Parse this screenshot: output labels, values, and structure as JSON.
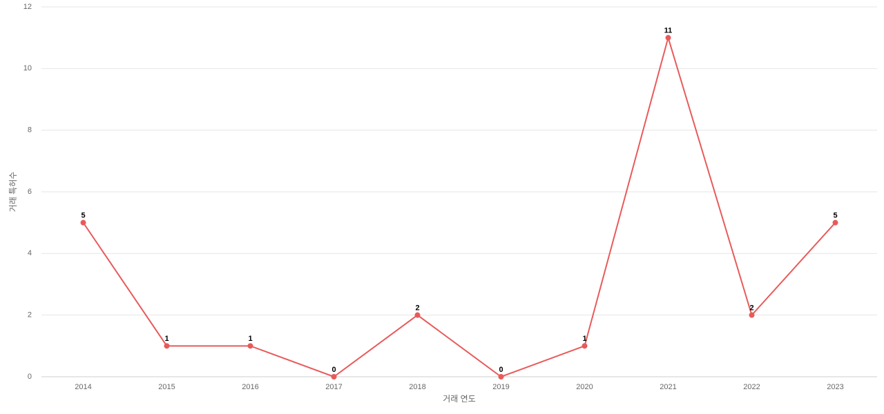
{
  "chart_data": {
    "type": "line",
    "x_label": "거래 연도",
    "y_label": "거래 특허수",
    "categories": [
      "2014",
      "2015",
      "2016",
      "2017",
      "2018",
      "2019",
      "2020",
      "2021",
      "2022",
      "2023"
    ],
    "series": [
      {
        "name": "거래 특허수",
        "color": "#e85a5a",
        "values": [
          5,
          1,
          1,
          0,
          2,
          0,
          1,
          11,
          2,
          5
        ]
      }
    ],
    "ylim": [
      0,
      12
    ],
    "yticks": [
      0,
      2,
      4,
      6,
      8,
      10,
      12
    ],
    "grid": true
  }
}
